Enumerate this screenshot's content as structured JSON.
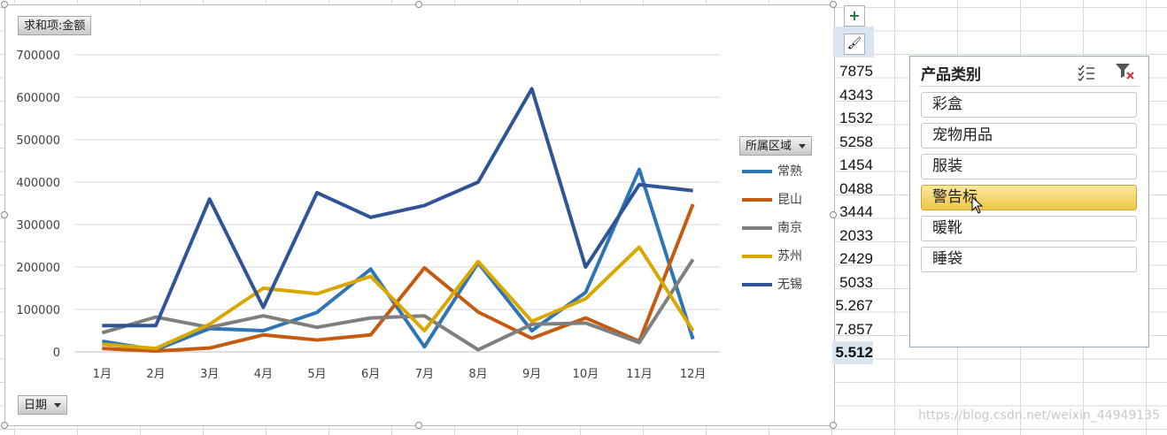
{
  "chart": {
    "value_field_button": "求和项:金额",
    "legend_field_button": "所属区域",
    "axis_field_button": "日期"
  },
  "chart_data": {
    "type": "line",
    "categories": [
      "1月",
      "2月",
      "3月",
      "4月",
      "5月",
      "6月",
      "7月",
      "8月",
      "9月",
      "10月",
      "11月",
      "12月"
    ],
    "ylim": [
      0,
      700000
    ],
    "yticks": [
      "0",
      "100000",
      "200000",
      "300000",
      "400000",
      "500000",
      "600000",
      "700000"
    ],
    "grid": true,
    "legend_position": "right",
    "series": [
      {
        "name": "常熟",
        "color": "#2e75b6",
        "values": [
          25000,
          5000,
          55000,
          50000,
          93000,
          195000,
          12000,
          210000,
          50000,
          140000,
          430000,
          30000
        ]
      },
      {
        "name": "昆山",
        "color": "#c55a11",
        "values": [
          8000,
          2000,
          9000,
          40000,
          28000,
          40000,
          198000,
          94000,
          32000,
          80000,
          25000,
          348000
        ]
      },
      {
        "name": "南京",
        "color": "#7f7f7f",
        "values": [
          45000,
          82000,
          58000,
          85000,
          58000,
          80000,
          85000,
          5000,
          65000,
          68000,
          22000,
          218000
        ]
      },
      {
        "name": "苏州",
        "color": "#d9a800",
        "values": [
          18000,
          8000,
          65000,
          150000,
          137000,
          178000,
          50000,
          213000,
          72000,
          125000,
          247000,
          50000
        ]
      },
      {
        "name": "无锡",
        "color": "#2f5597",
        "values": [
          62000,
          62000,
          360000,
          105000,
          375000,
          317000,
          345000,
          400000,
          620000,
          200000,
          394000,
          380000
        ]
      }
    ]
  },
  "side_buttons": {
    "add": "+",
    "brush": "🖌"
  },
  "cells": [
    "7875",
    "4343",
    "1532",
    "5258",
    "1454",
    "0488",
    "3444",
    "2033",
    "2429",
    "5033",
    "5.267",
    "7.857",
    "5.512"
  ],
  "slicer": {
    "title": "产品类别",
    "items": [
      {
        "label": "彩盒",
        "selected": false
      },
      {
        "label": "宠物用品",
        "selected": false
      },
      {
        "label": "服装",
        "selected": false
      },
      {
        "label": "警告标",
        "selected": true
      },
      {
        "label": "暖靴",
        "selected": false
      },
      {
        "label": "睡袋",
        "selected": false
      }
    ]
  },
  "watermark": "https://blog.csdn.net/weixin_44949135"
}
